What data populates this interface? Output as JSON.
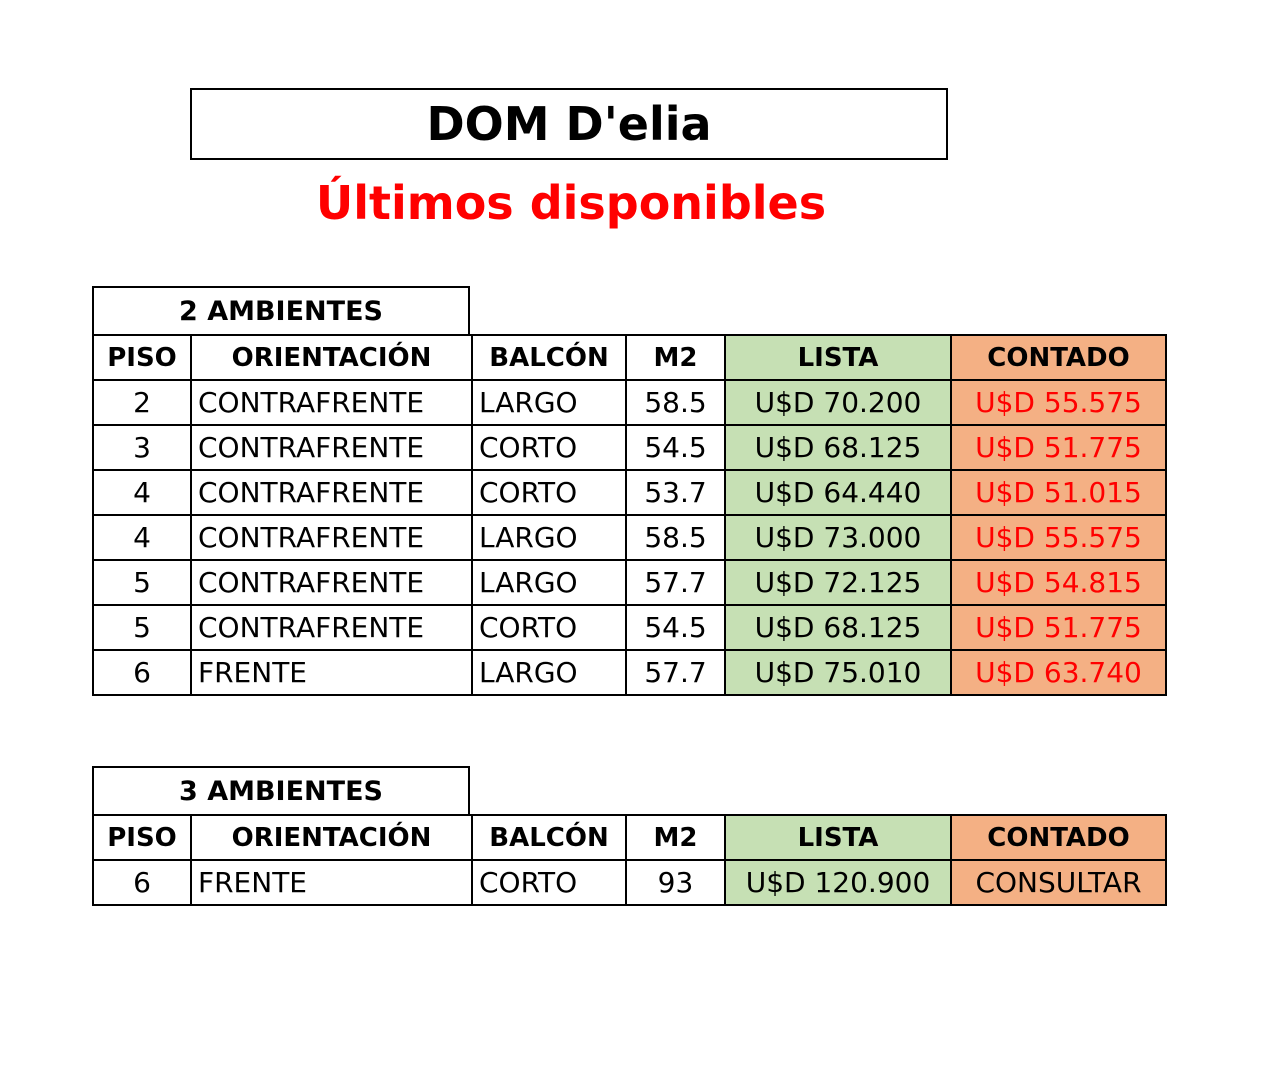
{
  "header": {
    "title": "DOM D'elia",
    "subtitle": "Últimos disponibles"
  },
  "colors": {
    "subtitle": "#ff0000",
    "lista_fill": "#c6e0b4",
    "contado_fill": "#f4b084",
    "contado_text": "#ff0000"
  },
  "columns": [
    "PISO",
    "ORIENTACIÓN",
    "BALCÓN",
    "M2",
    "LISTA",
    "CONTADO"
  ],
  "tables": [
    {
      "label": "2 AMBIENTES",
      "rows": [
        [
          "2",
          "CONTRAFRENTE",
          "LARGO",
          "58.5",
          "U$D 70.200",
          "U$D 55.575"
        ],
        [
          "3",
          "CONTRAFRENTE",
          "CORTO",
          "54.5",
          "U$D 68.125",
          "U$D 51.775"
        ],
        [
          "4",
          "CONTRAFRENTE",
          "CORTO",
          "53.7",
          "U$D 64.440",
          "U$D 51.015"
        ],
        [
          "4",
          "CONTRAFRENTE",
          "LARGO",
          "58.5",
          "U$D 73.000",
          "U$D 55.575"
        ],
        [
          "5",
          "CONTRAFRENTE",
          "LARGO",
          "57.7",
          "U$D 72.125",
          "U$D 54.815"
        ],
        [
          "5",
          "CONTRAFRENTE",
          "CORTO",
          "54.5",
          "U$D 68.125",
          "U$D 51.775"
        ],
        [
          "6",
          "FRENTE",
          "LARGO",
          "57.7",
          "U$D 75.010",
          "U$D 63.740"
        ]
      ]
    },
    {
      "label": "3 AMBIENTES",
      "rows": [
        [
          "6",
          "FRENTE",
          "CORTO",
          "93",
          "U$D 120.900",
          "CONSULTAR"
        ]
      ]
    }
  ]
}
